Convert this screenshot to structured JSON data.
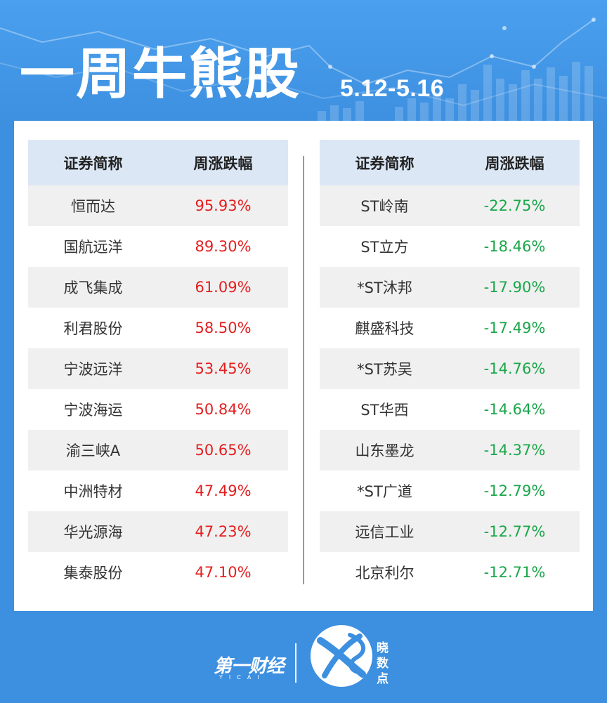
{
  "header": {
    "title": "一周牛熊股",
    "date_range": "5.12-5.16"
  },
  "gainers": {
    "col_name": "证券简称",
    "col_change": "周涨跌幅",
    "rows": [
      {
        "name": "恒而达",
        "change": "95.93%"
      },
      {
        "name": "国航远洋",
        "change": "89.30%"
      },
      {
        "name": "成飞集成",
        "change": "61.09%"
      },
      {
        "name": "利君股份",
        "change": "58.50%"
      },
      {
        "name": "宁波远洋",
        "change": "53.45%"
      },
      {
        "name": "宁波海运",
        "change": "50.84%"
      },
      {
        "name": "渝三峡A",
        "change": "50.65%"
      },
      {
        "name": "中洲特材",
        "change": "47.49%"
      },
      {
        "name": "华光源海",
        "change": "47.23%"
      },
      {
        "name": "集泰股份",
        "change": "47.10%"
      }
    ]
  },
  "losers": {
    "col_name": "证券简称",
    "col_change": "周涨跌幅",
    "rows": [
      {
        "name": "ST岭南",
        "change": "-22.75%"
      },
      {
        "name": "ST立方",
        "change": "-18.46%"
      },
      {
        "name": "*ST沐邦",
        "change": "-17.90%"
      },
      {
        "name": "麒盛科技",
        "change": "-17.49%"
      },
      {
        "name": "*ST苏吴",
        "change": "-14.76%"
      },
      {
        "name": "ST华西",
        "change": "-14.64%"
      },
      {
        "name": "山东墨龙",
        "change": "-14.37%"
      },
      {
        "name": "*ST广道",
        "change": "-12.79%"
      },
      {
        "name": "远信工业",
        "change": "-12.77%"
      },
      {
        "name": "北京利尔",
        "change": "-12.71%"
      }
    ]
  },
  "footer": {
    "brand": "第一财经",
    "brand_sub": "YICAI",
    "logo_chars": [
      "晓",
      "数",
      "点"
    ]
  },
  "colors": {
    "background": "#3d8fe0",
    "header_row": "#dbe7f5",
    "up": "#e41e1e",
    "down": "#1aa64a"
  }
}
